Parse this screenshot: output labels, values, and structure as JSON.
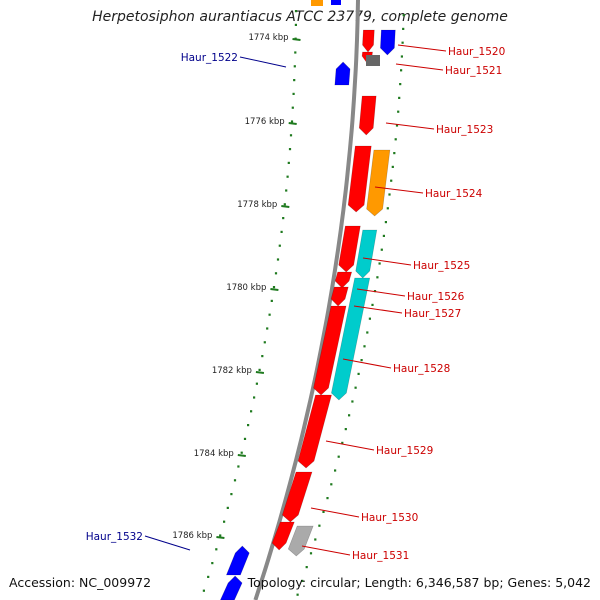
{
  "title": "Herpetosiphon aurantiacus ATCC 23779, complete genome",
  "footer": {
    "accession": "Accession: NC_009972",
    "summary": "Topology: circular; Length: 6,346,587 bp; Genes: 5,042"
  },
  "colors": {
    "backbone": "#888888",
    "ticks": "#1f7a1f",
    "forward_label": "#00008b",
    "reverse_label": "#cc0000",
    "red_gene": "#ff0000",
    "blue_gene": "#0000ff",
    "orange_gene": "#ff9900",
    "cyan_gene": "#00cccc",
    "gray_gene": "#aaaaaa"
  },
  "axis_labels": [
    "1774 kbp",
    "1776 kbp",
    "1778 kbp",
    "1780 kbp",
    "1782 kbp",
    "1784 kbp",
    "1786 kbp"
  ],
  "gene_labels": [
    {
      "name": "Haur_1520",
      "strand": "reverse"
    },
    {
      "name": "Haur_1521",
      "strand": "reverse"
    },
    {
      "name": "Haur_1522",
      "strand": "forward"
    },
    {
      "name": "Haur_1523",
      "strand": "reverse"
    },
    {
      "name": "Haur_1524",
      "strand": "reverse"
    },
    {
      "name": "Haur_1525",
      "strand": "reverse"
    },
    {
      "name": "Haur_1526",
      "strand": "reverse"
    },
    {
      "name": "Haur_1527",
      "strand": "reverse"
    },
    {
      "name": "Haur_1528",
      "strand": "reverse"
    },
    {
      "name": "Haur_1529",
      "strand": "reverse"
    },
    {
      "name": "Haur_1530",
      "strand": "reverse"
    },
    {
      "name": "Haur_1531",
      "strand": "reverse"
    },
    {
      "name": "Haur_1532",
      "strand": "forward"
    }
  ]
}
